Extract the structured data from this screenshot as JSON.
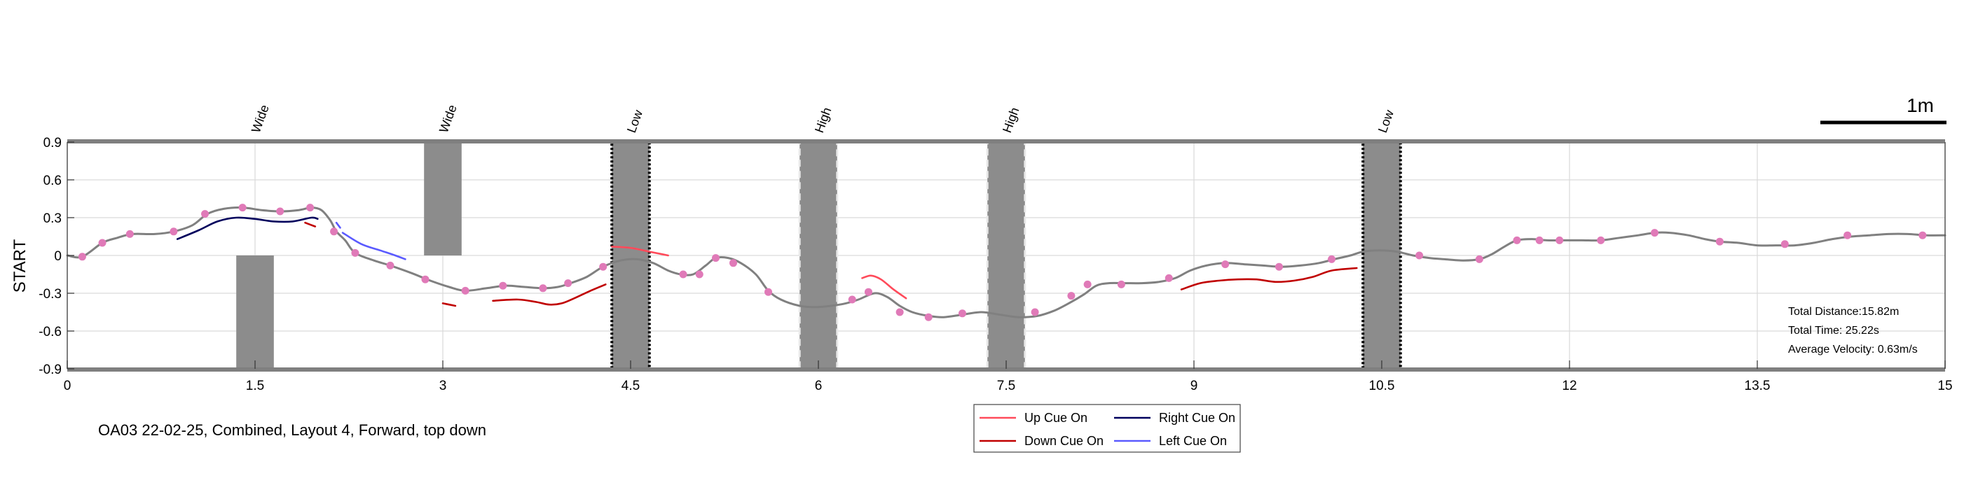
{
  "chart_data": {
    "type": "line",
    "xlim": [
      0,
      15
    ],
    "ylim": [
      -0.9,
      0.9
    ],
    "x_ticks": [
      "0",
      "1.5",
      "3",
      "4.5",
      "6",
      "7.5",
      "9",
      "10.5",
      "12",
      "13.5",
      "15"
    ],
    "y_ticks": [
      "0.9",
      "0.6",
      "0.3",
      "0",
      "-0.3",
      "-0.6",
      "-0.9"
    ],
    "ylabel": "START",
    "grid": true,
    "caption": "OA03 22-02-25, Combined, Layout 4, Forward, top down",
    "scale_bar": {
      "label": "1m",
      "length_m": 1
    },
    "stats": [
      "Total Distance:15.82m",
      "Total Time: 25.22s",
      "Average Velocity: 0.63m/s"
    ],
    "obstacles": [
      {
        "label": "Wide",
        "x": [
          1.35,
          1.65
        ],
        "y": [
          -0.9,
          0.0
        ],
        "style": "plain"
      },
      {
        "label": "Wide",
        "x": [
          2.85,
          3.15
        ],
        "y": [
          0.0,
          0.9
        ],
        "style": "plain"
      },
      {
        "label": "Low",
        "x": [
          4.35,
          4.65
        ],
        "y": [
          -0.9,
          0.9
        ],
        "style": "dotted-black"
      },
      {
        "label": "High",
        "x": [
          5.85,
          6.15
        ],
        "y": [
          -0.9,
          0.9
        ],
        "style": "dashed-white"
      },
      {
        "label": "High",
        "x": [
          7.35,
          7.65
        ],
        "y": [
          -0.9,
          0.9
        ],
        "style": "dashed-white"
      },
      {
        "label": "Low",
        "x": [
          10.35,
          10.65
        ],
        "y": [
          -0.9,
          0.9
        ],
        "style": "dotted-black"
      }
    ],
    "path": {
      "name": "",
      "color": "#808080",
      "points": [
        [
          0.0,
          0.0
        ],
        [
          0.12,
          -0.01
        ],
        [
          0.28,
          0.1
        ],
        [
          0.4,
          0.14
        ],
        [
          0.52,
          0.17
        ],
        [
          0.7,
          0.17
        ],
        [
          0.85,
          0.19
        ],
        [
          1.0,
          0.24
        ],
        [
          1.12,
          0.33
        ],
        [
          1.25,
          0.37
        ],
        [
          1.4,
          0.38
        ],
        [
          1.55,
          0.36
        ],
        [
          1.7,
          0.35
        ],
        [
          1.85,
          0.36
        ],
        [
          1.95,
          0.38
        ],
        [
          2.03,
          0.36
        ],
        [
          2.1,
          0.28
        ],
        [
          2.15,
          0.19
        ],
        [
          2.22,
          0.12
        ],
        [
          2.3,
          0.02
        ],
        [
          2.45,
          -0.04
        ],
        [
          2.58,
          -0.08
        ],
        [
          2.75,
          -0.14
        ],
        [
          2.9,
          -0.2
        ],
        [
          3.05,
          -0.25
        ],
        [
          3.18,
          -0.28
        ],
        [
          3.35,
          -0.26
        ],
        [
          3.5,
          -0.24
        ],
        [
          3.65,
          -0.25
        ],
        [
          3.8,
          -0.26
        ],
        [
          3.92,
          -0.25
        ],
        [
          4.02,
          -0.22
        ],
        [
          4.15,
          -0.17
        ],
        [
          4.28,
          -0.09
        ],
        [
          4.42,
          -0.04
        ],
        [
          4.55,
          -0.03
        ],
        [
          4.68,
          -0.06
        ],
        [
          4.8,
          -0.12
        ],
        [
          4.9,
          -0.15
        ],
        [
          5.0,
          -0.15
        ],
        [
          5.1,
          -0.08
        ],
        [
          5.18,
          -0.02
        ],
        [
          5.28,
          -0.02
        ],
        [
          5.38,
          -0.06
        ],
        [
          5.5,
          -0.15
        ],
        [
          5.6,
          -0.28
        ],
        [
          5.7,
          -0.35
        ],
        [
          5.85,
          -0.4
        ],
        [
          5.98,
          -0.41
        ],
        [
          6.1,
          -0.4
        ],
        [
          6.22,
          -0.38
        ],
        [
          6.32,
          -0.35
        ],
        [
          6.45,
          -0.3
        ],
        [
          6.55,
          -0.33
        ],
        [
          6.65,
          -0.4
        ],
        [
          6.75,
          -0.45
        ],
        [
          6.88,
          -0.48
        ],
        [
          7.0,
          -0.49
        ],
        [
          7.15,
          -0.47
        ],
        [
          7.3,
          -0.45
        ],
        [
          7.45,
          -0.47
        ],
        [
          7.6,
          -0.49
        ],
        [
          7.75,
          -0.48
        ],
        [
          7.88,
          -0.44
        ],
        [
          8.0,
          -0.38
        ],
        [
          8.12,
          -0.31
        ],
        [
          8.22,
          -0.24
        ],
        [
          8.32,
          -0.22
        ],
        [
          8.45,
          -0.22
        ],
        [
          8.58,
          -0.22
        ],
        [
          8.72,
          -0.21
        ],
        [
          8.85,
          -0.18
        ],
        [
          8.97,
          -0.12
        ],
        [
          9.1,
          -0.08
        ],
        [
          9.25,
          -0.06
        ],
        [
          9.4,
          -0.07
        ],
        [
          9.55,
          -0.08
        ],
        [
          9.7,
          -0.09
        ],
        [
          9.85,
          -0.08
        ],
        [
          10.0,
          -0.06
        ],
        [
          10.12,
          -0.03
        ],
        [
          10.25,
          0.0
        ],
        [
          10.35,
          0.03
        ],
        [
          10.48,
          0.04
        ],
        [
          10.62,
          0.03
        ],
        [
          10.75,
          0.0
        ],
        [
          10.88,
          -0.02
        ],
        [
          11.0,
          -0.03
        ],
        [
          11.15,
          -0.04
        ],
        [
          11.28,
          -0.03
        ],
        [
          11.38,
          0.01
        ],
        [
          11.48,
          0.07
        ],
        [
          11.58,
          0.12
        ],
        [
          11.7,
          0.13
        ],
        [
          11.82,
          0.12
        ],
        [
          11.95,
          0.12
        ],
        [
          12.1,
          0.12
        ],
        [
          12.25,
          0.12
        ],
        [
          12.4,
          0.14
        ],
        [
          12.55,
          0.16
        ],
        [
          12.68,
          0.18
        ],
        [
          12.8,
          0.18
        ],
        [
          12.95,
          0.16
        ],
        [
          13.08,
          0.13
        ],
        [
          13.2,
          0.11
        ],
        [
          13.35,
          0.1
        ],
        [
          13.5,
          0.08
        ],
        [
          13.65,
          0.08
        ],
        [
          13.8,
          0.08
        ],
        [
          13.95,
          0.1
        ],
        [
          14.1,
          0.13
        ],
        [
          14.25,
          0.15
        ],
        [
          14.4,
          0.16
        ],
        [
          14.55,
          0.17
        ],
        [
          14.7,
          0.17
        ],
        [
          14.85,
          0.16
        ],
        [
          15.0,
          0.16
        ]
      ]
    },
    "markers": {
      "color": "#e07ab8",
      "points": [
        [
          0.12,
          -0.01
        ],
        [
          0.28,
          0.1
        ],
        [
          0.5,
          0.17
        ],
        [
          0.85,
          0.19
        ],
        [
          1.1,
          0.33
        ],
        [
          1.4,
          0.38
        ],
        [
          1.7,
          0.35
        ],
        [
          1.94,
          0.38
        ],
        [
          2.13,
          0.19
        ],
        [
          2.3,
          0.02
        ],
        [
          2.58,
          -0.08
        ],
        [
          2.86,
          -0.19
        ],
        [
          3.18,
          -0.28
        ],
        [
          3.48,
          -0.24
        ],
        [
          3.8,
          -0.26
        ],
        [
          4.0,
          -0.22
        ],
        [
          4.28,
          -0.09
        ],
        [
          4.92,
          -0.15
        ],
        [
          5.05,
          -0.15
        ],
        [
          5.18,
          -0.02
        ],
        [
          5.32,
          -0.06
        ],
        [
          5.6,
          -0.29
        ],
        [
          6.27,
          -0.35
        ],
        [
          6.4,
          -0.29
        ],
        [
          6.65,
          -0.45
        ],
        [
          6.88,
          -0.49
        ],
        [
          7.15,
          -0.46
        ],
        [
          7.73,
          -0.45
        ],
        [
          8.02,
          -0.32
        ],
        [
          8.15,
          -0.23
        ],
        [
          8.42,
          -0.23
        ],
        [
          8.8,
          -0.18
        ],
        [
          9.25,
          -0.07
        ],
        [
          9.68,
          -0.09
        ],
        [
          10.1,
          -0.03
        ],
        [
          10.8,
          0.0
        ],
        [
          11.28,
          -0.03
        ],
        [
          11.58,
          0.12
        ],
        [
          11.76,
          0.12
        ],
        [
          11.92,
          0.12
        ],
        [
          12.25,
          0.12
        ],
        [
          12.68,
          0.18
        ],
        [
          13.2,
          0.11
        ],
        [
          13.72,
          0.09
        ],
        [
          14.22,
          0.16
        ],
        [
          14.82,
          0.16
        ]
      ]
    },
    "cue_segments": [
      {
        "cue": "Right Cue On",
        "points": [
          [
            0.88,
            0.13
          ],
          [
            1.05,
            0.2
          ],
          [
            1.2,
            0.27
          ],
          [
            1.35,
            0.3
          ],
          [
            1.5,
            0.29
          ],
          [
            1.65,
            0.27
          ],
          [
            1.8,
            0.27
          ],
          [
            1.95,
            0.3
          ],
          [
            2.0,
            0.29
          ]
        ]
      },
      {
        "cue": "Down Cue On",
        "points": [
          [
            1.9,
            0.26
          ],
          [
            1.98,
            0.23
          ]
        ]
      },
      {
        "cue": "Left Cue On",
        "points": [
          [
            2.15,
            0.26
          ],
          [
            2.18,
            0.22
          ]
        ]
      },
      {
        "cue": "Left Cue On",
        "points": [
          [
            2.2,
            0.18
          ],
          [
            2.35,
            0.09
          ],
          [
            2.5,
            0.04
          ],
          [
            2.62,
            0.0
          ],
          [
            2.7,
            -0.03
          ]
        ]
      },
      {
        "cue": "Down Cue On",
        "points": [
          [
            3.0,
            -0.38
          ],
          [
            3.1,
            -0.4
          ]
        ]
      },
      {
        "cue": "Down Cue On",
        "points": [
          [
            3.4,
            -0.36
          ],
          [
            3.6,
            -0.35
          ],
          [
            3.75,
            -0.37
          ],
          [
            3.85,
            -0.39
          ],
          [
            3.95,
            -0.38
          ],
          [
            4.05,
            -0.34
          ],
          [
            4.18,
            -0.28
          ],
          [
            4.3,
            -0.23
          ]
        ]
      },
      {
        "cue": "Up Cue On",
        "points": [
          [
            4.35,
            0.07
          ],
          [
            4.5,
            0.06
          ],
          [
            4.65,
            0.03
          ],
          [
            4.75,
            0.01
          ],
          [
            4.8,
            0.0
          ]
        ]
      },
      {
        "cue": "Up Cue On",
        "points": [
          [
            6.35,
            -0.18
          ],
          [
            6.42,
            -0.16
          ],
          [
            6.5,
            -0.19
          ],
          [
            6.6,
            -0.27
          ],
          [
            6.7,
            -0.34
          ]
        ]
      },
      {
        "cue": "Down Cue On",
        "points": [
          [
            8.9,
            -0.27
          ],
          [
            9.05,
            -0.22
          ],
          [
            9.2,
            -0.2
          ],
          [
            9.35,
            -0.19
          ],
          [
            9.5,
            -0.19
          ],
          [
            9.65,
            -0.21
          ],
          [
            9.8,
            -0.2
          ],
          [
            9.95,
            -0.17
          ],
          [
            10.1,
            -0.12
          ],
          [
            10.3,
            -0.1
          ]
        ]
      }
    ],
    "legend": {
      "placement": "bottom-center",
      "entries": [
        {
          "label": "Up Cue On",
          "color": "#ff4a5a"
        },
        {
          "label": "Right Cue On",
          "color": "#00005c"
        },
        {
          "label": "Down Cue On",
          "color": "#c00000"
        },
        {
          "label": "Left Cue On",
          "color": "#5a5aff"
        }
      ]
    }
  }
}
